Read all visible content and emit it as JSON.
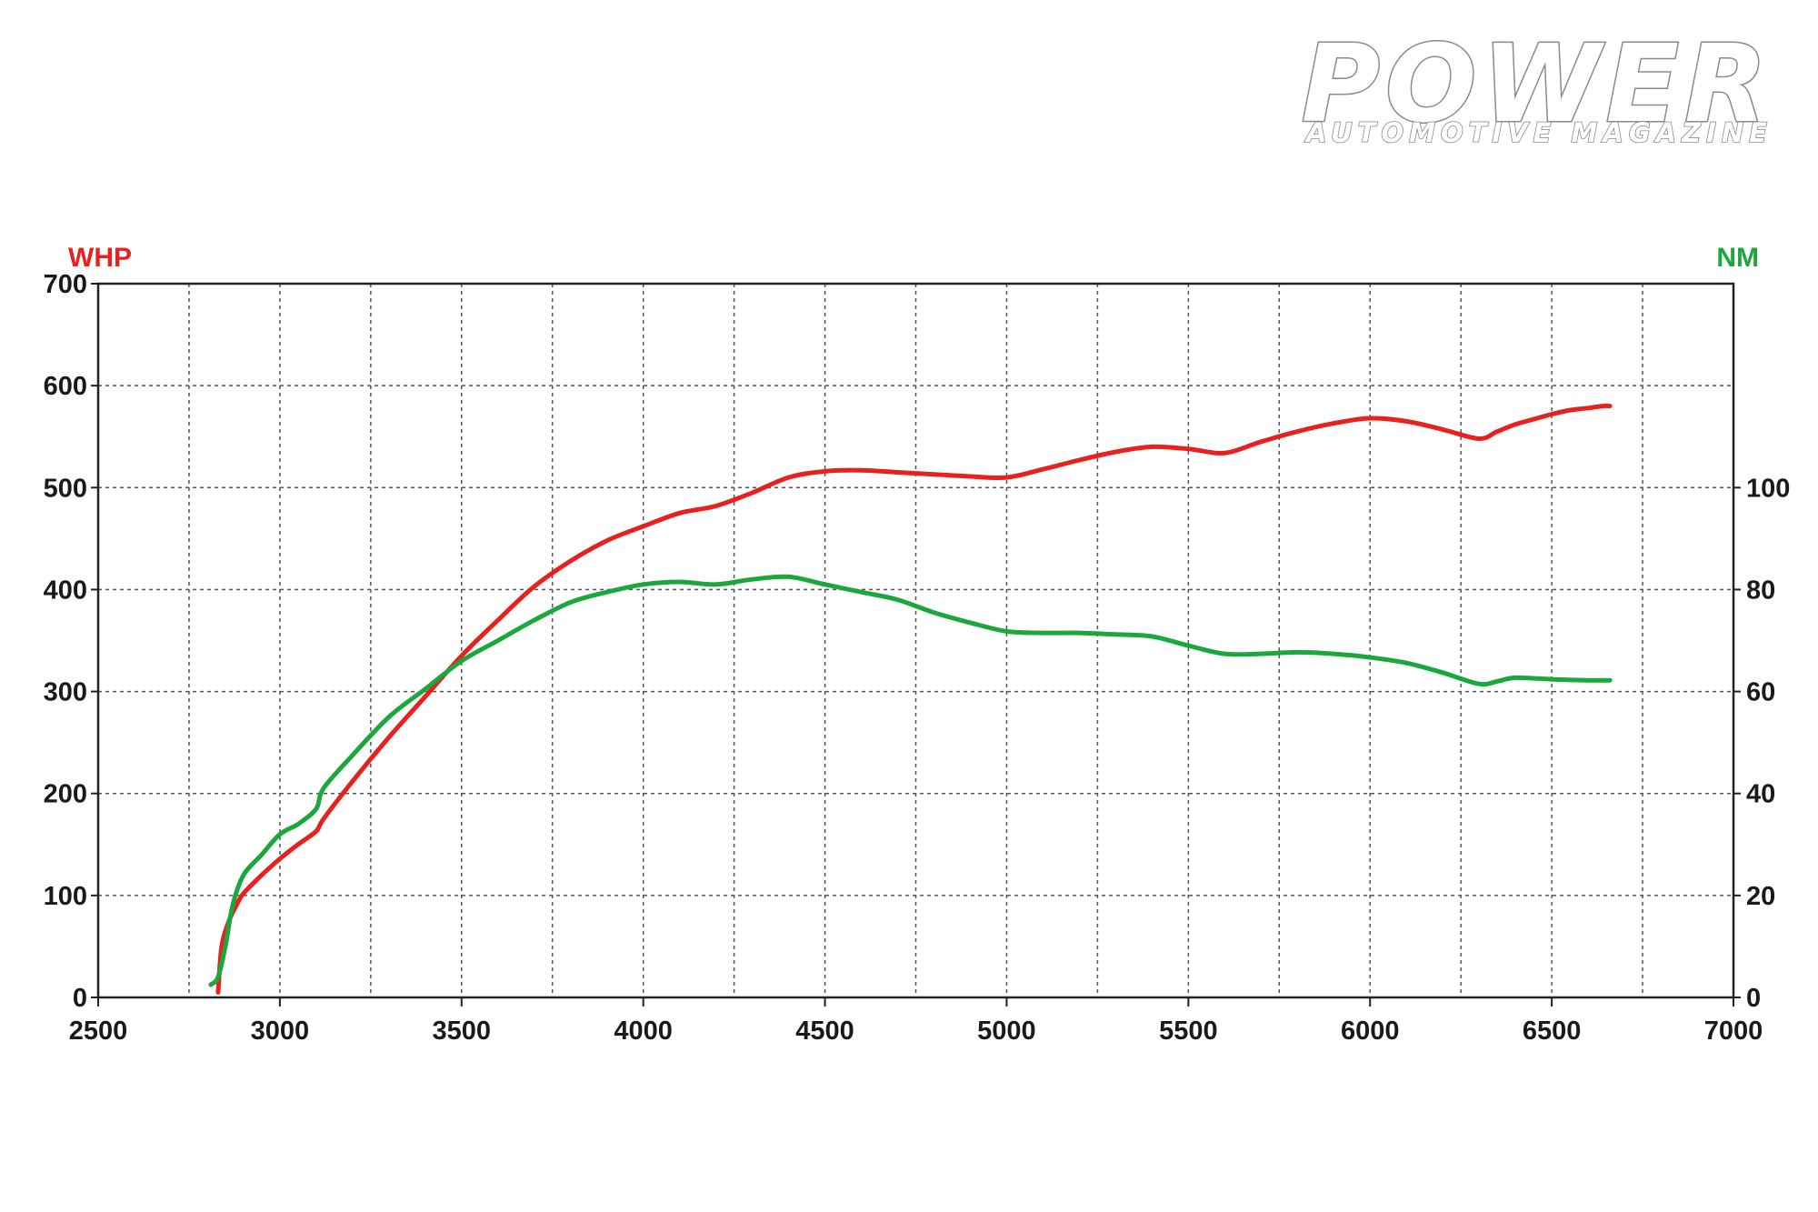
{
  "brand": {
    "name": "POWER",
    "tagline": "AUTOMOTIVE MAGAZINE"
  },
  "chart_data": {
    "type": "line",
    "title": "",
    "xlabel": "",
    "xlim": [
      2500,
      7000
    ],
    "xticks": [
      2500,
      3000,
      3500,
      4000,
      4500,
      5000,
      5500,
      6000,
      6500,
      7000
    ],
    "grid": true,
    "left_axis": {
      "label": "WHP",
      "color": "#e8211f",
      "ylim": [
        0,
        700
      ],
      "ticks": [
        0,
        100,
        200,
        300,
        400,
        500,
        600,
        700
      ]
    },
    "right_axis": {
      "label": "NM",
      "color": "#1aa83c",
      "ylim": [
        0,
        140
      ],
      "ticks": [
        0,
        20,
        40,
        60,
        80,
        100
      ]
    },
    "series": [
      {
        "axis": "left",
        "color": "#e8211f",
        "x": [
          2830,
          2840,
          2860,
          2880,
          2900,
          2950,
          3000,
          3050,
          3100,
          3120,
          3200,
          3300,
          3400,
          3500,
          3600,
          3700,
          3800,
          3900,
          4000,
          4100,
          4200,
          4300,
          4400,
          4500,
          4600,
          4700,
          4800,
          4900,
          5000,
          5100,
          5200,
          5300,
          5400,
          5500,
          5600,
          5700,
          5800,
          5900,
          6000,
          6100,
          6200,
          6300,
          6350,
          6400,
          6450,
          6500,
          6550,
          6600,
          6640,
          6660
        ],
        "values": [
          5,
          50,
          75,
          90,
          102,
          120,
          136,
          150,
          163,
          175,
          212,
          255,
          295,
          335,
          370,
          403,
          428,
          448,
          462,
          475,
          482,
          495,
          510,
          516,
          517,
          515,
          513,
          511,
          510,
          518,
          527,
          535,
          540,
          538,
          534,
          545,
          555,
          563,
          568,
          565,
          557,
          548,
          555,
          562,
          567,
          572,
          576,
          578,
          580,
          580
        ]
      },
      {
        "axis": "right",
        "color": "#1aa83c",
        "x": [
          2810,
          2830,
          2850,
          2870,
          2900,
          2950,
          3000,
          3050,
          3100,
          3120,
          3200,
          3300,
          3400,
          3500,
          3600,
          3700,
          3800,
          3900,
          4000,
          4100,
          4200,
          4300,
          4400,
          4500,
          4600,
          4700,
          4800,
          4900,
          5000,
          5100,
          5200,
          5300,
          5400,
          5500,
          5600,
          5700,
          5800,
          5900,
          6000,
          6100,
          6200,
          6300,
          6350,
          6400,
          6500,
          6600,
          6660
        ],
        "values": [
          2.5,
          4,
          10,
          18,
          24,
          28,
          32,
          34,
          37,
          41,
          47.5,
          55,
          60.5,
          66,
          70,
          74,
          77.5,
          79.5,
          81,
          81.5,
          81,
          82,
          82.5,
          81,
          79.5,
          78,
          75.5,
          73.5,
          71.8,
          71.5,
          71.5,
          71.2,
          70.8,
          69,
          67.4,
          67.4,
          67.7,
          67.4,
          66.7,
          65.6,
          63.7,
          61.5,
          62,
          62.7,
          62.4,
          62.2,
          62.2
        ]
      }
    ]
  }
}
